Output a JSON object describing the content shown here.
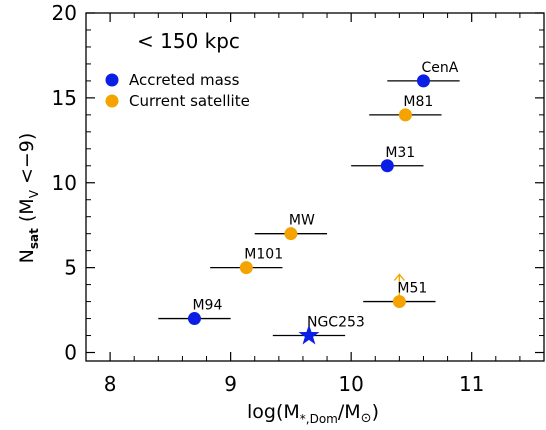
{
  "chart_data": {
    "type": "scatter",
    "annotation": "< 150 kpc",
    "xlabel": {
      "main": "log(M",
      "sub1": "*,Dom",
      "mid": "/M",
      "sym": "⊙",
      "close": ")"
    },
    "ylabel": {
      "main": "N",
      "sub1": "sat",
      "paren_open": "(M",
      "sub2": "V",
      "rest": " <−9)"
    },
    "xlim": [
      7.8,
      11.6
    ],
    "ylim": [
      -0.5,
      20
    ],
    "xticks": [
      8,
      9,
      10,
      11
    ],
    "xtick_labels": [
      "8",
      "9",
      "10",
      "11"
    ],
    "yticks": [
      0,
      5,
      10,
      15,
      20
    ],
    "ytick_labels": [
      "0",
      "5",
      "10",
      "15",
      "20"
    ],
    "grid": false,
    "legend_position": "top-left",
    "legend": [
      {
        "label": "Accreted mass",
        "color": "#0a1ee6"
      },
      {
        "label": "Current satellite",
        "color": "#f5a300"
      }
    ],
    "points": [
      {
        "name": "CenA",
        "x": 10.6,
        "y": 16,
        "xerr": [
          0.3,
          0.3
        ],
        "kind": "accreted",
        "lower_limit": false
      },
      {
        "name": "M81",
        "x": 10.45,
        "y": 14,
        "xerr": [
          0.3,
          0.3
        ],
        "kind": "satellite",
        "lower_limit": false
      },
      {
        "name": "M31",
        "x": 10.3,
        "y": 11,
        "xerr": [
          0.3,
          0.3
        ],
        "kind": "accreted",
        "lower_limit": false
      },
      {
        "name": "MW",
        "x": 9.5,
        "y": 7,
        "xerr": [
          0.3,
          0.3
        ],
        "kind": "satellite",
        "lower_limit": false
      },
      {
        "name": "M101",
        "x": 9.13,
        "y": 5,
        "xerr": [
          0.3,
          0.3
        ],
        "kind": "satellite",
        "lower_limit": false
      },
      {
        "name": "M94",
        "x": 8.7,
        "y": 2,
        "xerr": [
          0.3,
          0.3
        ],
        "kind": "accreted",
        "lower_limit": false
      },
      {
        "name": "M51",
        "x": 10.4,
        "y": 3,
        "xerr": [
          0.3,
          0.3
        ],
        "kind": "satellite",
        "lower_limit": true
      },
      {
        "name": "NGC253",
        "x": 9.65,
        "y": 1,
        "xerr": [
          0.3,
          0.3
        ],
        "kind": "star",
        "lower_limit": false
      }
    ],
    "colors": {
      "accreted": "#0a1ee6",
      "satellite": "#f5a300",
      "star": "#0a1ee6",
      "axis": "#000000"
    }
  }
}
